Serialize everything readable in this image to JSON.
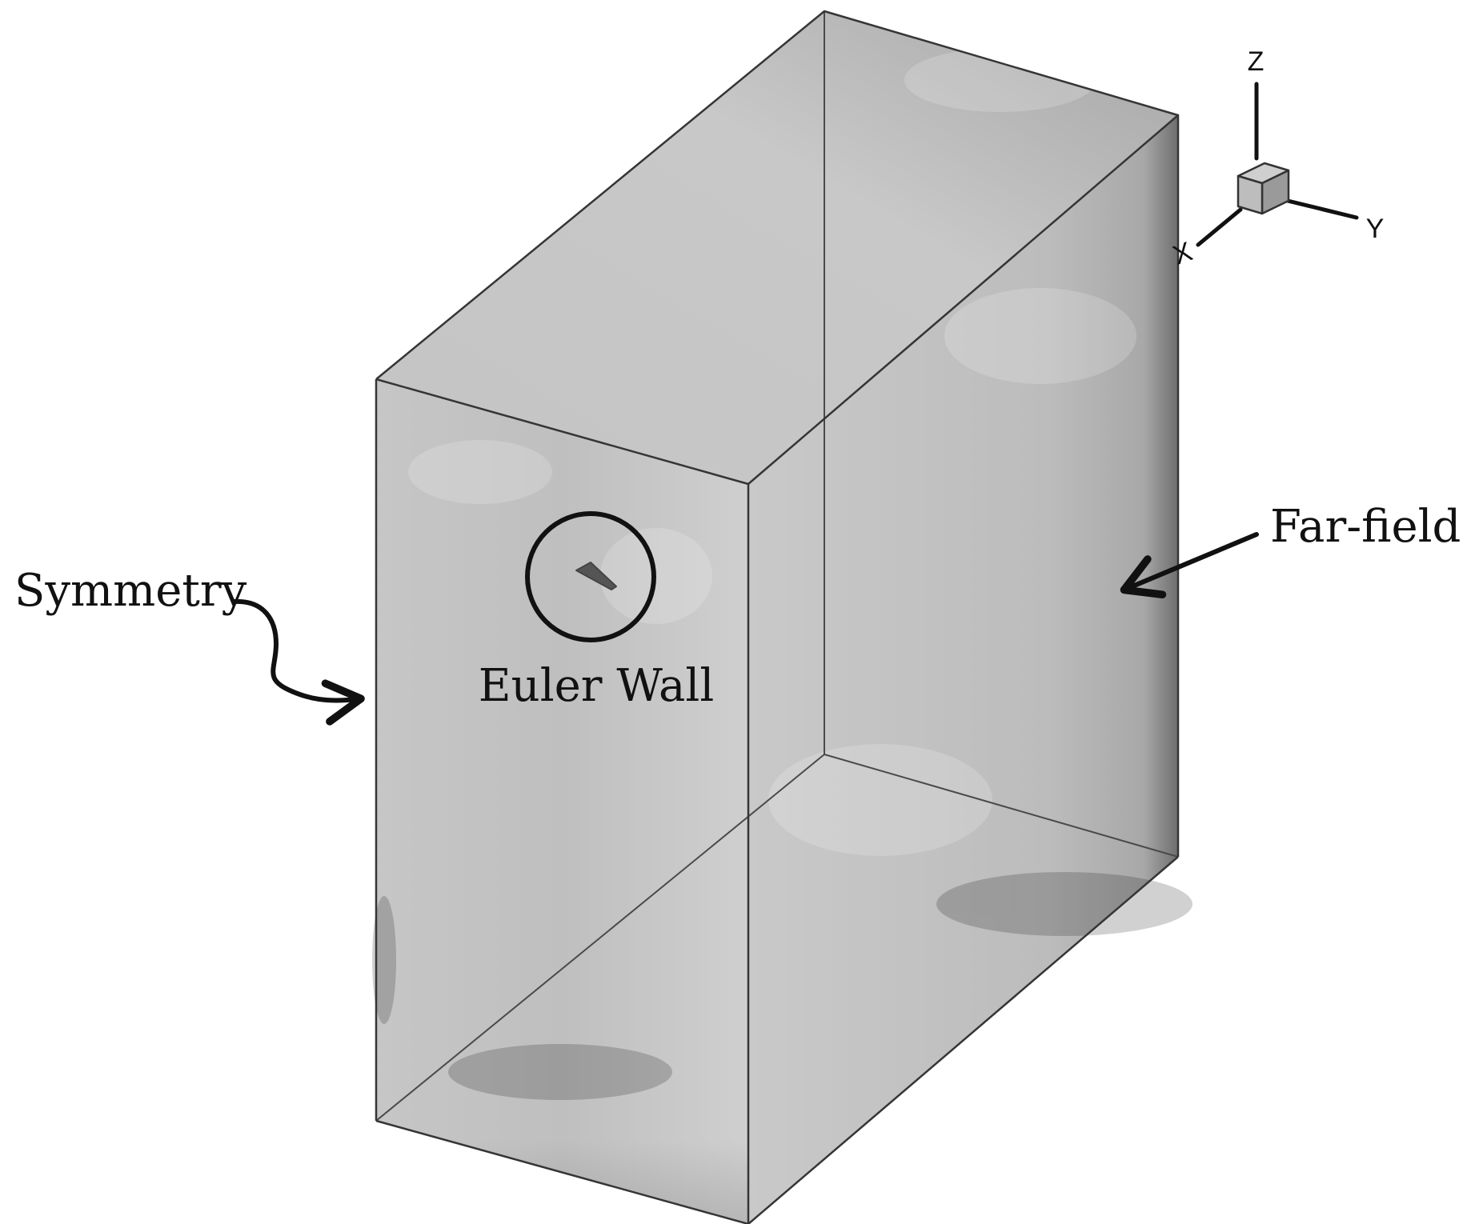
{
  "labels": {
    "symmetry": "Symmetry",
    "euler_wall": "Euler Wall",
    "far_field": "Far-field"
  },
  "axes_triad": {
    "x": "X",
    "y": "Y",
    "z": "Z"
  },
  "colors": {
    "face_light": "#cfcfcf",
    "face_mid": "#bdbdbd",
    "face_dark": "#7a7a7a",
    "edge": "#3a3a3a",
    "ink": "#111111",
    "wing": "#555555",
    "background": "#ffffff"
  }
}
